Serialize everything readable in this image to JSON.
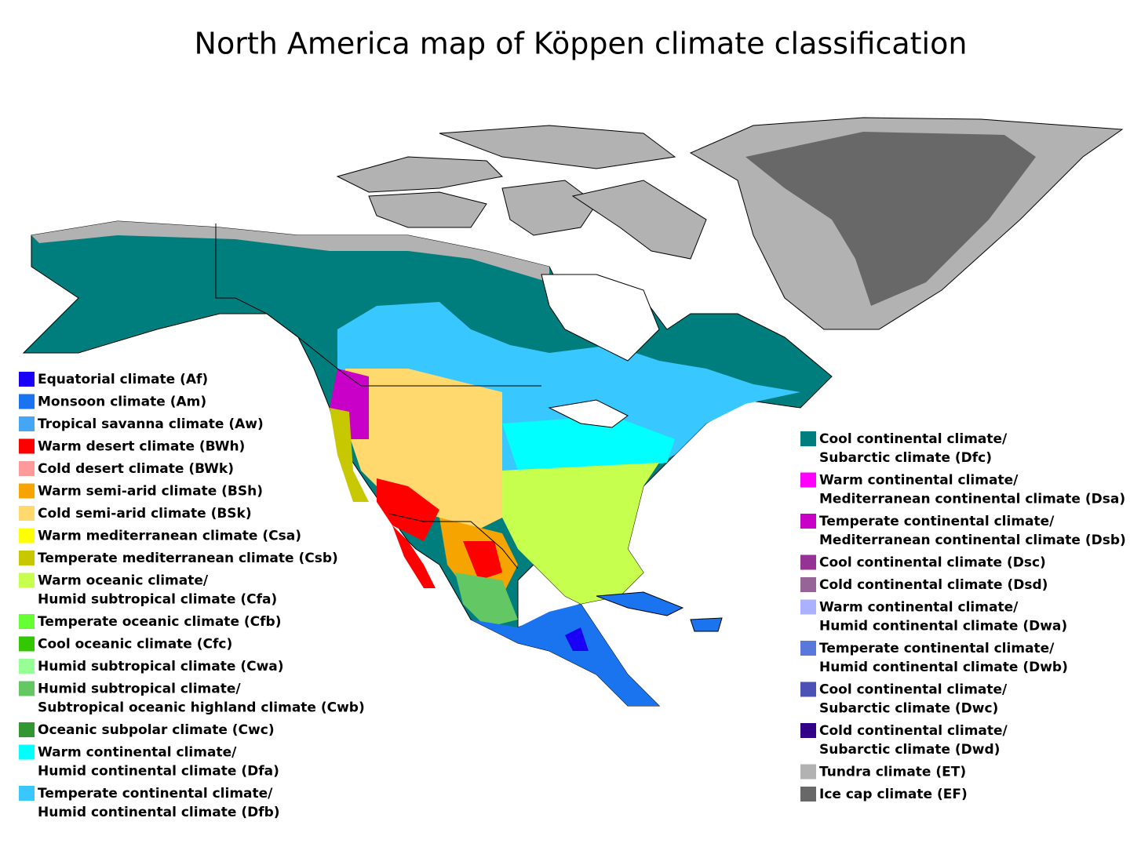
{
  "title": "North America map of Köppen climate classification",
  "legend_left": [
    {
      "lines": [
        "Equatorial climate (Af)"
      ],
      "color": "#1a00f5"
    },
    {
      "lines": [
        "Monsoon climate (Am)"
      ],
      "color": "#1a74f0"
    },
    {
      "lines": [
        "Tropical savanna climate (Aw)"
      ],
      "color": "#45a6f5"
    },
    {
      "lines": [
        "Warm desert climate (BWh)"
      ],
      "color": "#ff0000"
    },
    {
      "lines": [
        "Cold desert climate (BWk)"
      ],
      "color": "#ff9a9a"
    },
    {
      "lines": [
        "Warm semi-arid climate (BSh)"
      ],
      "color": "#f5a400"
    },
    {
      "lines": [
        "Cold semi-arid climate (BSk)"
      ],
      "color": "#ffd96e"
    },
    {
      "lines": [
        "Warm mediterranean climate (Csa)"
      ],
      "color": "#ffff00"
    },
    {
      "lines": [
        "Temperate mediterranean climate (Csb)"
      ],
      "color": "#c8c800"
    },
    {
      "lines": [
        "Warm oceanic climate/",
        "Humid subtropical climate (Cfa)"
      ],
      "color": "#c6ff4e"
    },
    {
      "lines": [
        "Temperate oceanic climate (Cfb)"
      ],
      "color": "#66ff33"
    },
    {
      "lines": [
        "Cool oceanic climate (Cfc)"
      ],
      "color": "#33c700"
    },
    {
      "lines": [
        "Humid subtropical climate (Cwa)"
      ],
      "color": "#96ff96"
    },
    {
      "lines": [
        "Humid subtropical climate/",
        "Subtropical oceanic highland climate (Cwb)"
      ],
      "color": "#63c764"
    },
    {
      "lines": [
        "Oceanic subpolar climate (Cwc)"
      ],
      "color": "#329632"
    },
    {
      "lines": [
        "Warm continental climate/",
        "Humid continental climate (Dfa)"
      ],
      "color": "#00ffff"
    },
    {
      "lines": [
        "Temperate continental climate/",
        "Humid continental climate (Dfb)"
      ],
      "color": "#38c7ff"
    }
  ],
  "legend_right": [
    {
      "lines": [
        "Cool continental climate/",
        "Subarctic climate (Dfc)"
      ],
      "color": "#007e7d"
    },
    {
      "lines": [
        "Warm continental climate/",
        "Mediterranean continental climate (Dsa)"
      ],
      "color": "#ff00ff"
    },
    {
      "lines": [
        "Temperate continental climate/",
        "Mediterranean continental climate (Dsb)"
      ],
      "color": "#c800c8"
    },
    {
      "lines": [
        "Cool continental climate (Dsc)"
      ],
      "color": "#963296"
    },
    {
      "lines": [
        "Cold continental climate (Dsd)"
      ],
      "color": "#966496"
    },
    {
      "lines": [
        "Warm continental climate/",
        "Humid continental climate (Dwa)"
      ],
      "color": "#abb1ff"
    },
    {
      "lines": [
        "Temperate continental climate/",
        "Humid continental climate (Dwb)"
      ],
      "color": "#5a77db"
    },
    {
      "lines": [
        "Cool continental climate/",
        "Subarctic climate (Dwc)"
      ],
      "color": "#4c51b5"
    },
    {
      "lines": [
        "Cold continental climate/",
        "Subarctic climate (Dwd)"
      ],
      "color": "#320087"
    },
    {
      "lines": [
        "Tundra climate (ET)"
      ],
      "color": "#b2b2b2"
    },
    {
      "lines": [
        "Ice cap climate (EF)"
      ],
      "color": "#686868"
    }
  ]
}
